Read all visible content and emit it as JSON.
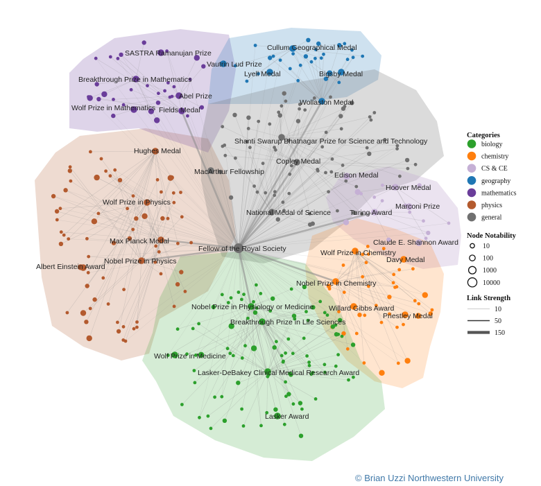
{
  "categories": [
    {
      "key": "biology",
      "label": "biology",
      "color": "#2ca02c"
    },
    {
      "key": "chemistry",
      "label": "chemistry",
      "color": "#ff7f0e"
    },
    {
      "key": "cs",
      "label": "CS & CE",
      "color": "#c5b0d5"
    },
    {
      "key": "geography",
      "label": "geography",
      "color": "#1f77b4"
    },
    {
      "key": "mathematics",
      "label": "mathematics",
      "color": "#6a3d9a"
    },
    {
      "key": "physics",
      "label": "physics",
      "color": "#b35a2e"
    },
    {
      "key": "general",
      "label": "general",
      "color": "#707070"
    }
  ],
  "legend": {
    "categories_title": "Categories",
    "notability_title": "Node Notability",
    "notability_values": [
      "10",
      "100",
      "1000",
      "10000"
    ],
    "link_title": "Link Strength",
    "link_values": [
      "10",
      "50",
      "150"
    ]
  },
  "credit": "© Brian Uzzi Northwestern University",
  "labels": [
    {
      "text": "SASTRA Ramanujan Prize",
      "cat": "mathematics"
    },
    {
      "text": "Vautrin Lud Prize",
      "cat": "geography"
    },
    {
      "text": "Breakthrough Prize in Mathematics",
      "cat": "mathematics"
    },
    {
      "text": "Abel Prize",
      "cat": "mathematics"
    },
    {
      "text": "Wolf Prize in Mathematics",
      "cat": "mathematics"
    },
    {
      "text": "Fields Medal",
      "cat": "mathematics"
    },
    {
      "text": "Cullum Geographical Medal",
      "cat": "geography"
    },
    {
      "text": "Lyell Medal",
      "cat": "geography"
    },
    {
      "text": "Bigsby Medal",
      "cat": "geography"
    },
    {
      "text": "Wollaston Medal",
      "cat": "geography"
    },
    {
      "text": "Shanti Swarup Bhatnagar Prize for Science and Technology",
      "cat": "general"
    },
    {
      "text": "Hughes Medal",
      "cat": "physics"
    },
    {
      "text": "Copley Medal",
      "cat": "general"
    },
    {
      "text": "MacArthur Fellowship",
      "cat": "general"
    },
    {
      "text": "Edison Medal",
      "cat": "cs"
    },
    {
      "text": "Hoover Medal",
      "cat": "cs"
    },
    {
      "text": "Wolf Prize in Physics",
      "cat": "physics"
    },
    {
      "text": "Marconi Prize",
      "cat": "cs"
    },
    {
      "text": "Turing Award",
      "cat": "cs"
    },
    {
      "text": "National Medal of Science",
      "cat": "general"
    },
    {
      "text": "Max Planck Medal",
      "cat": "physics"
    },
    {
      "text": "Claude E. Shannon Award",
      "cat": "cs"
    },
    {
      "text": "Fellow of the Royal Society",
      "cat": "general"
    },
    {
      "text": "Wolf Prize in Chemistry",
      "cat": "chemistry"
    },
    {
      "text": "Nobel Prize in Physics",
      "cat": "physics"
    },
    {
      "text": "Davy Medal",
      "cat": "chemistry"
    },
    {
      "text": "Albert Einstein Award",
      "cat": "physics"
    },
    {
      "text": "Nobel Prize in Chemistry",
      "cat": "chemistry"
    },
    {
      "text": "Nobel Prize in Physiology or Medicine",
      "cat": "biology"
    },
    {
      "text": "Willard Gibbs Award",
      "cat": "chemistry"
    },
    {
      "text": "Priestley Medal",
      "cat": "chemistry"
    },
    {
      "text": "Breakthrough Prize in Life Sciences",
      "cat": "biology"
    },
    {
      "text": "Wolf Prize in Medicine",
      "cat": "biology"
    },
    {
      "text": "Lasker-DeBakey Clinical Medical Research Award",
      "cat": "biology"
    },
    {
      "text": "Lasker Award",
      "cat": "biology"
    }
  ]
}
